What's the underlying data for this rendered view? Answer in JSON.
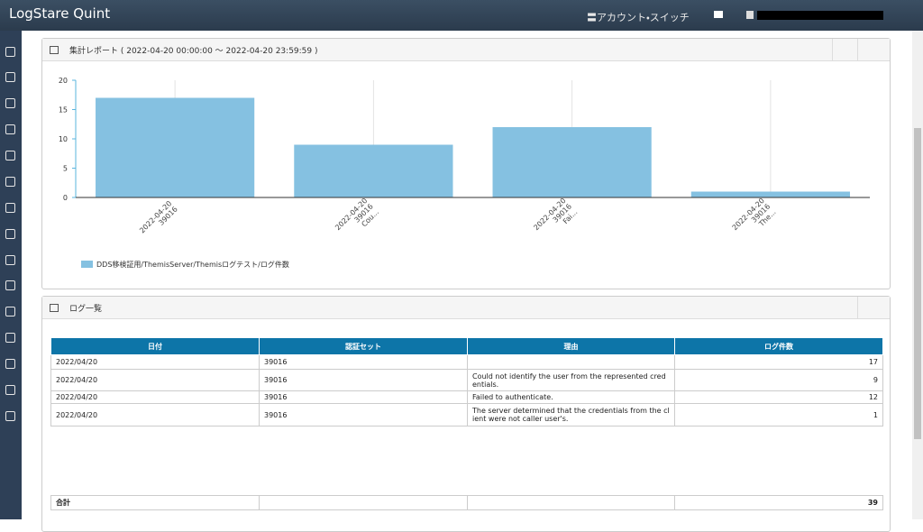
{
  "topbar": {
    "brand": "LogStare Quint",
    "account_switch": "〓アカウント・スイッチ"
  },
  "report": {
    "title": "集計レポート ( 2022-04-20 00:00:00 ～ 2022-04-20 23:59:59 )",
    "chart": {
      "type": "bar",
      "categories": [
        [
          "2022-04-20",
          "39016"
        ],
        [
          "2022-04-20",
          "39016",
          "Cou..."
        ],
        [
          "2022-04-20",
          "39016",
          "Fai..."
        ],
        [
          "2022-04-20",
          "39016",
          "The..."
        ]
      ],
      "series": [
        {
          "name": "DDS移検証用/ThemisServer/Themisログテスト/ログ件数",
          "color": "#85c1e1",
          "values": [
            17,
            9,
            12,
            1
          ]
        }
      ],
      "ylim": [
        0,
        20
      ],
      "yticks": [
        0,
        5,
        10,
        15,
        20
      ],
      "x_grid": true
    }
  },
  "log_list": {
    "title": "ログ一覧",
    "table": {
      "headers": [
        "日付",
        "認証セット",
        "理由",
        "ログ件数"
      ],
      "rows": [
        [
          "2022/04/20",
          "39016",
          null,
          17
        ],
        [
          "2022/04/20",
          "39016",
          "Could not identify the user from the represented credentials.",
          9
        ],
        [
          "2022/04/20",
          "39016",
          "Failed to authenticate.",
          12
        ],
        [
          "2022/04/20",
          "39016",
          "The server determined that the credentials from the client were not caller user's.",
          1
        ]
      ],
      "total_label": "合計",
      "total": 39
    }
  }
}
